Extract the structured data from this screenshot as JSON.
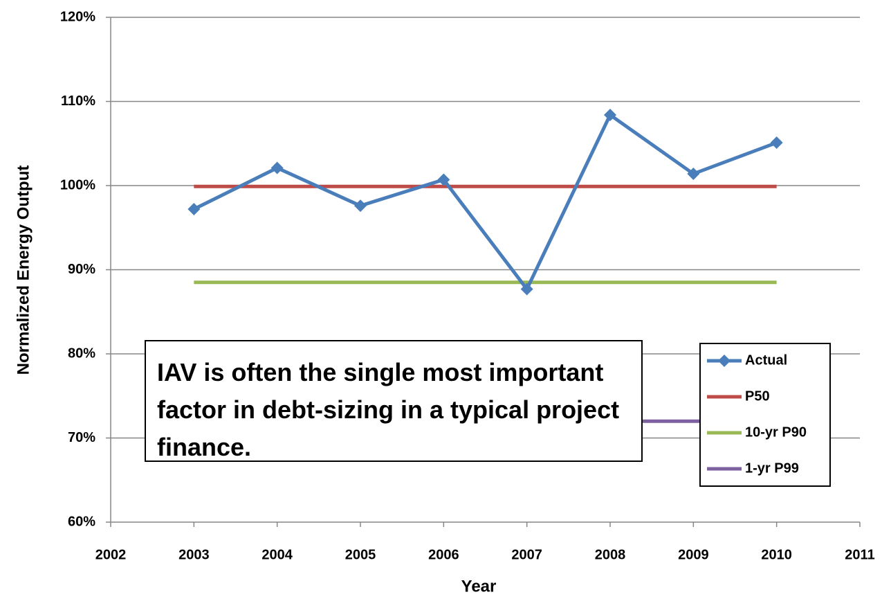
{
  "chart_data": {
    "type": "line",
    "x_label": "Year",
    "y_label": "Normalized Energy Output",
    "annotation": "IAV is often the single most important factor in debt-sizing in a typical project finance.",
    "x": [
      2003,
      2004,
      2005,
      2006,
      2007,
      2008,
      2009,
      2010
    ],
    "series": [
      {
        "name": "Actual",
        "color": "#4a7ebb",
        "marker": "diamond",
        "values": [
          97.2,
          102.1,
          97.6,
          100.7,
          87.7,
          108.4,
          101.4,
          105.1
        ]
      },
      {
        "name": "P50",
        "color": "#be4b48",
        "values": [
          99.9,
          99.9,
          99.9,
          99.9,
          99.9,
          99.9,
          99.9,
          99.9
        ]
      },
      {
        "name": "10-yr P90",
        "color": "#98b954",
        "values": [
          88.5,
          88.5,
          88.5,
          88.5,
          88.5,
          88.5,
          88.5,
          88.5
        ]
      },
      {
        "name": "1-yr P99",
        "color": "#7d60a0",
        "values": [
          72,
          72,
          72,
          72,
          72,
          72,
          72,
          72
        ]
      }
    ],
    "xlim": [
      2002,
      2011
    ],
    "xticks": [
      2002,
      2003,
      2004,
      2005,
      2006,
      2007,
      2008,
      2009,
      2010,
      2011
    ],
    "ylim": [
      60,
      120
    ],
    "yticks": [
      {
        "value": 60,
        "label": "60%"
      },
      {
        "value": 70,
        "label": "70%"
      },
      {
        "value": 80,
        "label": "80%"
      },
      {
        "value": 90,
        "label": "90%"
      },
      {
        "value": 100,
        "label": "100%"
      },
      {
        "value": 110,
        "label": "110%"
      },
      {
        "value": 120,
        "label": "120%"
      }
    ],
    "grid": true,
    "legend": "lower right"
  }
}
